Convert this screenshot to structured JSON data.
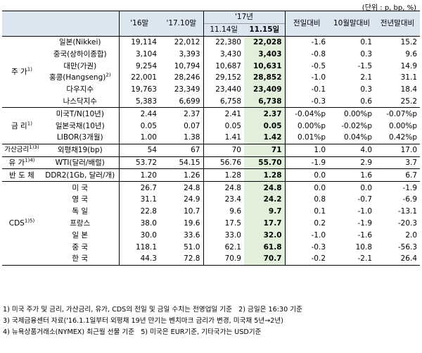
{
  "unit_label": "(단위 : p, bp, %)",
  "headers": {
    "col_16": "'16말",
    "col_1710": "'17.10말",
    "col_17": "'17년",
    "col_1114": "11.14일",
    "col_1115": "11.15일",
    "col_prevday": "전일대비",
    "col_oct": "10월말대비",
    "col_prevyear": "전년말대비"
  },
  "categories": {
    "stock": "주 가",
    "stock_sup": "1)",
    "rate": "금 리",
    "rate_sup": "1)",
    "spread": "가산금리",
    "spread_sup": "1)3)",
    "oil": "유 가",
    "oil_sup": "1)4)",
    "semi": "반 도 체",
    "cds": "CDS",
    "cds_sup": "1)5)"
  },
  "rows": {
    "nikkei": {
      "name": "일본(Nikkei)",
      "v16": "19,114",
      "v1710": "22,012",
      "v1114": "22,380",
      "v1115": "22,028",
      "d1": "-1.6",
      "d2": "0.1",
      "d3": "15.2"
    },
    "shanghai": {
      "name": "중국(상하이종합)",
      "v16": "3,104",
      "v1710": "3,393",
      "v1114": "3,430",
      "v1115": "3,403",
      "d1": "-0.8",
      "d2": "0.3",
      "d3": "9.6"
    },
    "taiwan": {
      "name": "대만(가권)",
      "v16": "9,254",
      "v1710": "10,794",
      "v1114": "10,687",
      "v1115": "10,631",
      "d1": "-0.5",
      "d2": "-1.5",
      "d3": "14.9"
    },
    "hangseng": {
      "name": "홍콩(Hangseng)",
      "name_sup": "2)",
      "v16": "22,001",
      "v1710": "28,246",
      "v1114": "29,152",
      "v1115": "28,852",
      "d1": "-1.0",
      "d2": "2.1",
      "d3": "31.1"
    },
    "dow": {
      "name": "다우지수",
      "v16": "19,763",
      "v1710": "23,349",
      "v1114": "23,440",
      "v1115": "23,409",
      "d1": "-0.1",
      "d2": "0.3",
      "d3": "18.4"
    },
    "nasdaq": {
      "name": "나스닥지수",
      "v16": "5,383",
      "v1710": "6,699",
      "v1114": "6,758",
      "v1115": "6,738",
      "d1": "-0.3",
      "d2": "0.6",
      "d3": "25.2"
    },
    "ust": {
      "name": "미국T/N(10년)",
      "v16": "2.44",
      "v1710": "2.37",
      "v1114": "2.41",
      "v1115": "2.37",
      "d1": "-0.04%p",
      "d2": "0.00%p",
      "d3": "-0.07%p"
    },
    "jgb": {
      "name": "일본국채(10년)",
      "v16": "0.05",
      "v1710": "0.07",
      "v1114": "0.05",
      "v1115": "0.05",
      "d1": "0.00%p",
      "d2": "-0.02%p",
      "d3": "0.00%p"
    },
    "libor": {
      "name": "LIBOR(3개월)",
      "v16": "1.00",
      "v1710": "1.38",
      "v1114": "1.41",
      "v1115": "1.42",
      "d1": "0.01%p",
      "d2": "0.04%p",
      "d3": "0.42%p"
    },
    "fxbond": {
      "name": "외평채19(bp)",
      "v16": "54",
      "v1710": "67",
      "v1114": "70",
      "v1115": "71",
      "d1": "1.0",
      "d2": "4.0",
      "d3": "17.0"
    },
    "wti": {
      "name": "WTI(달러/배럴)",
      "v16": "53.72",
      "v1710": "54.15",
      "v1114": "56.76",
      "v1115": "55.70",
      "d1": "-1.9",
      "d2": "2.9",
      "d3": "3.7"
    },
    "ddr": {
      "name": "DDR2(1Gb, 달러/개)",
      "v16": "1.20",
      "v1710": "1.26",
      "v1114": "1.28",
      "v1115": "1.28",
      "d1": "0.0",
      "d2": "1.6",
      "d3": "6.7"
    },
    "cds_us": {
      "name": "미 국",
      "v16": "26.7",
      "v1710": "24.8",
      "v1114": "24.8",
      "v1115": "24.8",
      "d1": "0.0",
      "d2": "0.0",
      "d3": "-1.9"
    },
    "cds_uk": {
      "name": "영 국",
      "v16": "31.1",
      "v1710": "24.9",
      "v1114": "23.4",
      "v1115": "24.2",
      "d1": "0.8",
      "d2": "-0.7",
      "d3": "-6.9"
    },
    "cds_de": {
      "name": "독 일",
      "v16": "22.8",
      "v1710": "10.7",
      "v1114": "9.6",
      "v1115": "9.7",
      "d1": "0.1",
      "d2": "-1.0",
      "d3": "-13.1"
    },
    "cds_fr": {
      "name": "프랑스",
      "v16": "38.0",
      "v1710": "19.6",
      "v1114": "17.5",
      "v1115": "17.7",
      "d1": "0.2",
      "d2": "-1.9",
      "d3": "-20.3"
    },
    "cds_jp": {
      "name": "일 본",
      "v16": "30.0",
      "v1710": "33.6",
      "v1114": "33.0",
      "v1115": "32.0",
      "d1": "-1.0",
      "d2": "-1.6",
      "d3": "2.0"
    },
    "cds_cn": {
      "name": "중 국",
      "v16": "118.1",
      "v1710": "51.0",
      "v1114": "62.1",
      "v1115": "61.8",
      "d1": "-0.3",
      "d2": "10.8",
      "d3": "-56.3"
    },
    "cds_kr": {
      "name": "한 국",
      "v16": "44.3",
      "v1710": "72.8",
      "v1114": "70.9",
      "v1115": "70.7",
      "d1": "-0.2",
      "d2": "-2.1",
      "d3": "26.4"
    }
  },
  "notes": {
    "n1": "1) 미국 주가 및 금리, 가산금리, 유가, CDS의 전일 및 금일 수치는 전영업일 기준",
    "n2": "2) 금일은 16:30 기준",
    "n3": "3) 국제금융센터 자료('16.1.1일부터 외평채 19년 만기는 벤치마크 금리가 변경, 미국채 5년→2년)",
    "n4": "4) 뉴욕상품거래소(NYMEX) 최근월 선물 기준",
    "n5": "5) 미국은 EUR기준, 기타국가는 USD기준"
  }
}
